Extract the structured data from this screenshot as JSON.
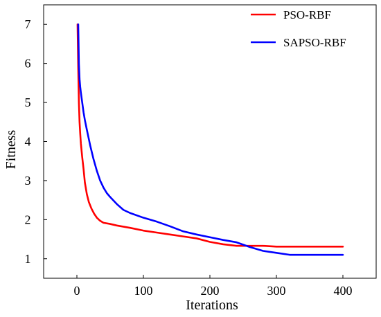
{
  "chart_data": {
    "type": "line",
    "title": "",
    "xlabel": "Iterations",
    "ylabel": "Fitness",
    "xlim": [
      -50,
      450
    ],
    "ylim": [
      0.5,
      7.5
    ],
    "xticks": [
      0,
      100,
      200,
      300,
      400
    ],
    "yticks": [
      1,
      2,
      3,
      4,
      5,
      6,
      7
    ],
    "grid": false,
    "legend_position": "top-right",
    "series": [
      {
        "name": "PSO-RBF",
        "color": "#ff0000",
        "x": [
          1,
          2,
          3,
          4,
          5,
          6,
          8,
          10,
          12,
          15,
          18,
          22,
          26,
          30,
          35,
          40,
          50,
          60,
          80,
          100,
          120,
          140,
          160,
          180,
          200,
          220,
          240,
          260,
          280,
          300,
          320,
          350,
          400
        ],
        "y": [
          7.0,
          5.9,
          5.0,
          4.5,
          4.2,
          3.95,
          3.6,
          3.3,
          2.95,
          2.65,
          2.45,
          2.28,
          2.15,
          2.05,
          1.97,
          1.92,
          1.89,
          1.85,
          1.79,
          1.72,
          1.67,
          1.62,
          1.57,
          1.52,
          1.43,
          1.37,
          1.33,
          1.33,
          1.33,
          1.31,
          1.31,
          1.31,
          1.31
        ]
      },
      {
        "name": "SAPSO-RBF",
        "color": "#0000ff",
        "x": [
          2,
          3,
          4,
          5,
          6,
          8,
          10,
          12,
          15,
          20,
          25,
          30,
          35,
          40,
          45,
          50,
          60,
          70,
          80,
          100,
          120,
          130,
          140,
          160,
          180,
          200,
          220,
          240,
          260,
          280,
          300,
          320,
          350,
          400
        ],
        "y": [
          7.0,
          6.0,
          5.6,
          5.4,
          5.25,
          5.0,
          4.75,
          4.55,
          4.3,
          3.9,
          3.55,
          3.25,
          3.0,
          2.82,
          2.68,
          2.58,
          2.4,
          2.25,
          2.17,
          2.05,
          1.95,
          1.89,
          1.83,
          1.7,
          1.62,
          1.55,
          1.48,
          1.42,
          1.3,
          1.2,
          1.15,
          1.1,
          1.1,
          1.1
        ]
      }
    ]
  }
}
